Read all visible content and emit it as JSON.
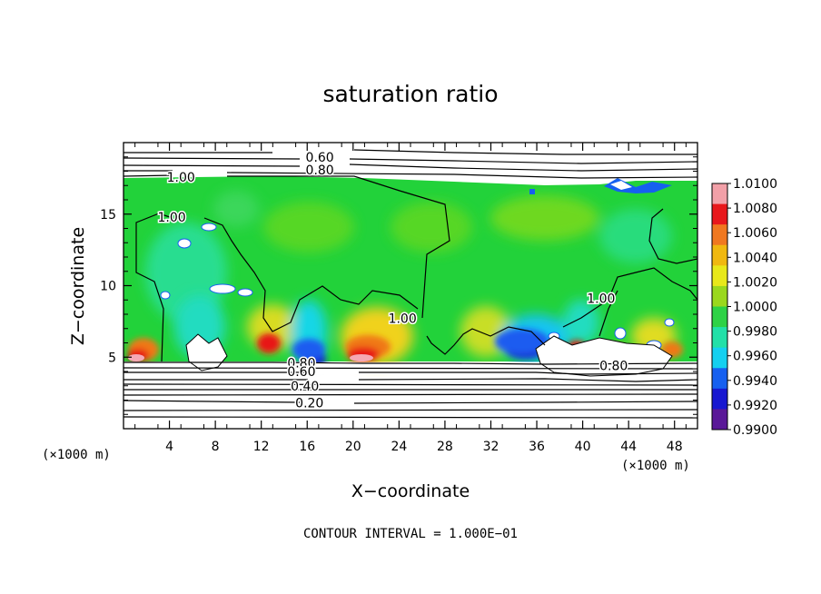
{
  "chart_data": {
    "type": "heatmap",
    "title": "saturation ratio",
    "xlabel": "X−coordinate",
    "ylabel": "Z−coordinate",
    "x_unit_left": "(×1000 m)",
    "x_unit_right": "(×1000 m)",
    "footer": "CONTOUR INTERVAL = 1.000E−01",
    "xlim": [
      0,
      50
    ],
    "ylim": [
      0,
      20
    ],
    "x_ticks": [
      4,
      8,
      12,
      16,
      20,
      24,
      28,
      32,
      36,
      40,
      44,
      48
    ],
    "x_tick_labels": [
      "4",
      "8",
      "12",
      "16",
      "20",
      "24",
      "28",
      "32",
      "36",
      "40",
      "44",
      "48"
    ],
    "y_ticks": [
      5,
      10,
      15
    ],
    "y_tick_labels": [
      "5",
      "10",
      "15"
    ],
    "colorbar": {
      "min": 0.99,
      "max": 1.01,
      "labels": [
        "1.0100",
        "1.0080",
        "1.0060",
        "1.0040",
        "1.0020",
        "1.0000",
        "0.9980",
        "0.9960",
        "0.9940",
        "0.9920",
        "0.9900"
      ],
      "colors": [
        "#f2a0a8",
        "#e8181c",
        "#f07820",
        "#f0b810",
        "#e8e81a",
        "#9ad81e",
        "#2ed246",
        "#22e0a8",
        "#14d0f0",
        "#1660f0",
        "#1818d0",
        "#5a1898"
      ]
    },
    "contour_labels": [
      {
        "text": "0.60",
        "x": 17.1,
        "y": 19.0
      },
      {
        "text": "0.80",
        "x": 17.1,
        "y": 18.1
      },
      {
        "text": "1.00",
        "x": 5.0,
        "y": 17.6
      },
      {
        "text": "1.00",
        "x": 4.2,
        "y": 14.8
      },
      {
        "text": "1.00",
        "x": 24.3,
        "y": 7.7
      },
      {
        "text": "1.00",
        "x": 41.6,
        "y": 9.1
      },
      {
        "text": "0.80",
        "x": 15.5,
        "y": 4.6
      },
      {
        "text": "0.60",
        "x": 15.5,
        "y": 4.0
      },
      {
        "text": "0.40",
        "x": 15.8,
        "y": 3.0
      },
      {
        "text": "0.20",
        "x": 16.2,
        "y": 1.8
      },
      {
        "text": "0.80",
        "x": 42.7,
        "y": 4.4
      }
    ]
  }
}
